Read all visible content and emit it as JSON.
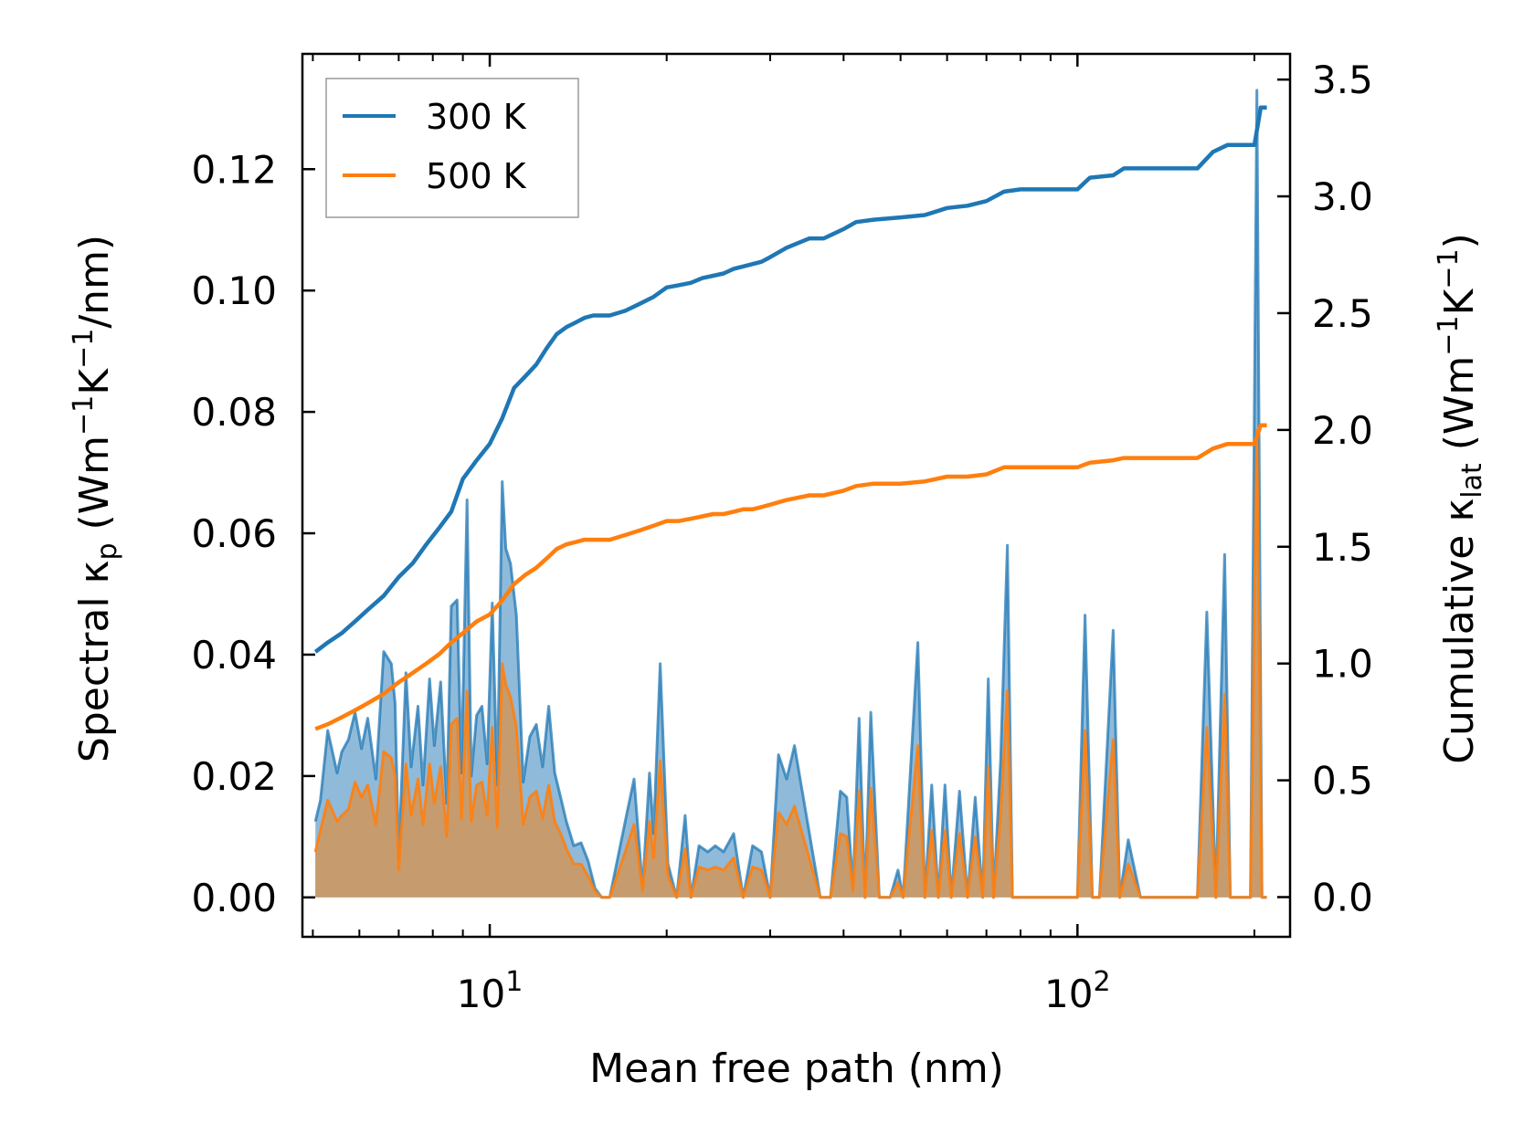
{
  "chart_data": {
    "type": "line+area",
    "xscale": "log",
    "xlabel": "Mean free path (nm)",
    "ylabel_left": {
      "main": "Spectral κ",
      "sub": "p",
      "unit_pre": " (Wm",
      "sup1": "−1",
      "unit_mid": "K",
      "sup2": "−1",
      "unit_post": "/nm)"
    },
    "ylabel_right": {
      "main": "Cumulative κ",
      "sub": "lat",
      "unit_pre": " (Wm",
      "sup1": "−1",
      "unit_mid": "K",
      "sup2": "−1",
      "unit_post": ")"
    },
    "xlim": [
      4.8,
      230
    ],
    "ylim_left": [
      -0.0065,
      0.139
    ],
    "ylim_right": [
      -0.17,
      3.61
    ],
    "x_major_ticks": [
      10,
      100
    ],
    "x_tick_labels": [
      {
        "base": "10",
        "exp": "1"
      },
      {
        "base": "10",
        "exp": "2"
      }
    ],
    "y_left_ticks": [
      0.0,
      0.02,
      0.04,
      0.06,
      0.08,
      0.1,
      0.12
    ],
    "y_left_tick_labels": [
      "0.00",
      "0.02",
      "0.04",
      "0.06",
      "0.08",
      "0.10",
      "0.12"
    ],
    "y_right_ticks": [
      0.0,
      0.5,
      1.0,
      1.5,
      2.0,
      2.5,
      3.0,
      3.5
    ],
    "y_right_tick_labels": [
      "0.0",
      "0.5",
      "1.0",
      "1.5",
      "2.0",
      "2.5",
      "3.0",
      "3.5"
    ],
    "legend": {
      "position": "top-left",
      "entries": [
        "300 K",
        "500 K"
      ]
    },
    "colors": {
      "300K": "#1f77b4",
      "500K": "#ff7f0e",
      "fill300": "#8fbad9",
      "fill500": "#c69c6e"
    },
    "series": [
      {
        "name": "300 K spectral",
        "axis": "left",
        "kind": "area",
        "x": [
          5.05,
          5.15,
          5.3,
          5.5,
          5.6,
          5.75,
          5.9,
          6.05,
          6.2,
          6.4,
          6.6,
          6.8,
          6.9,
          7.0,
          7.2,
          7.35,
          7.55,
          7.7,
          7.9,
          8.05,
          8.25,
          8.45,
          8.6,
          8.8,
          8.95,
          9.15,
          9.3,
          9.5,
          9.7,
          9.9,
          10.1,
          10.3,
          10.5,
          10.65,
          10.85,
          11.1,
          11.4,
          11.7,
          12.0,
          12.3,
          12.6,
          12.9,
          13.2,
          13.5,
          13.9,
          14.3,
          14.7,
          15.1,
          15.5,
          16.0,
          17.0,
          17.6,
          18.2,
          18.7,
          19.0,
          19.5,
          20.1,
          20.8,
          21.5,
          22.0,
          22.7,
          23.5,
          24.2,
          25.0,
          26.0,
          27.0,
          28.0,
          29.0,
          30.0,
          31.0,
          32.0,
          33.0,
          36.5,
          38.0,
          39.5,
          40.5,
          41.5,
          42.5,
          43.5,
          44.5,
          46.0,
          48.0,
          49.5,
          50.5,
          53.5,
          55.0,
          56.5,
          58.0,
          59.5,
          61.0,
          63.0,
          65.0,
          67.0,
          69.0,
          70.5,
          72.0,
          74.0,
          76.0,
          77.5,
          80.0,
          100.0,
          103.0,
          106.0,
          109.0,
          115.0,
          118.0,
          122.0,
          128.0,
          132.0,
          136.0,
          160.0,
          166.0,
          172.0,
          178.0,
          182.0,
          188.0,
          197.0,
          202.0,
          206.0,
          210.0
        ],
        "y": [
          0.0125,
          0.016,
          0.0275,
          0.0205,
          0.024,
          0.026,
          0.0305,
          0.0245,
          0.0295,
          0.0195,
          0.0405,
          0.0385,
          0.032,
          0.0065,
          0.037,
          0.0215,
          0.0315,
          0.0185,
          0.036,
          0.025,
          0.0355,
          0.0155,
          0.048,
          0.049,
          0.0205,
          0.0655,
          0.02,
          0.03,
          0.0315,
          0.022,
          0.0485,
          0.0185,
          0.0685,
          0.0575,
          0.055,
          0.0465,
          0.019,
          0.0265,
          0.0285,
          0.0215,
          0.0315,
          0.0205,
          0.0165,
          0.0125,
          0.0085,
          0.009,
          0.006,
          0.0015,
          0.0,
          0.0,
          0.0125,
          0.0195,
          0.0015,
          0.0205,
          0.0105,
          0.0385,
          0.0055,
          0.0,
          0.0135,
          0.0,
          0.0085,
          0.0075,
          0.0085,
          0.0075,
          0.0105,
          0.0,
          0.0085,
          0.0075,
          0.0,
          0.0235,
          0.0195,
          0.025,
          0.0,
          0.0,
          0.0175,
          0.0165,
          0.0015,
          0.0295,
          0.0,
          0.0305,
          0.0,
          0.0,
          0.0045,
          0.0,
          0.042,
          0.0,
          0.0185,
          0.0,
          0.0185,
          0.0,
          0.0175,
          0.0,
          0.0165,
          0.0,
          0.036,
          0.0,
          0.0225,
          0.058,
          0.0,
          0.0,
          0.0,
          0.0465,
          0.0,
          0.0,
          0.044,
          0.0,
          0.0095,
          0.0,
          0.0,
          0.0,
          0.0,
          0.047,
          0.0,
          0.0565,
          0.0,
          0.0,
          0.0,
          0.133,
          0.0,
          0.0
        ]
      },
      {
        "name": "500 K spectral",
        "axis": "left",
        "kind": "area",
        "x": [
          5.05,
          5.15,
          5.3,
          5.5,
          5.6,
          5.75,
          5.9,
          6.05,
          6.2,
          6.4,
          6.6,
          6.8,
          6.9,
          7.0,
          7.2,
          7.35,
          7.55,
          7.7,
          7.9,
          8.05,
          8.25,
          8.45,
          8.6,
          8.8,
          8.95,
          9.15,
          9.3,
          9.5,
          9.7,
          9.9,
          10.1,
          10.3,
          10.5,
          10.65,
          10.85,
          11.1,
          11.4,
          11.7,
          12.0,
          12.3,
          12.6,
          12.9,
          13.2,
          13.5,
          13.9,
          14.3,
          14.7,
          15.1,
          15.5,
          16.0,
          17.0,
          17.6,
          18.2,
          18.7,
          19.0,
          19.5,
          20.1,
          20.8,
          21.5,
          22.0,
          22.7,
          23.5,
          24.2,
          25.0,
          26.0,
          27.0,
          28.0,
          29.0,
          30.0,
          31.0,
          32.0,
          33.0,
          36.5,
          38.0,
          39.5,
          40.5,
          41.5,
          42.5,
          43.5,
          44.5,
          46.0,
          48.0,
          49.5,
          50.5,
          53.5,
          55.0,
          56.5,
          58.0,
          59.5,
          61.0,
          63.0,
          65.0,
          67.0,
          69.0,
          70.5,
          72.0,
          74.0,
          76.0,
          77.5,
          80.0,
          100.0,
          103.0,
          106.0,
          109.0,
          115.0,
          118.0,
          122.0,
          128.0,
          132.0,
          136.0,
          160.0,
          166.0,
          172.0,
          178.0,
          182.0,
          188.0,
          197.0,
          202.0,
          206.0,
          210.0
        ],
        "y": [
          0.0075,
          0.011,
          0.016,
          0.0125,
          0.0135,
          0.0145,
          0.019,
          0.0165,
          0.0185,
          0.012,
          0.024,
          0.023,
          0.02,
          0.0045,
          0.022,
          0.0135,
          0.0195,
          0.012,
          0.022,
          0.0155,
          0.0215,
          0.01,
          0.0285,
          0.0295,
          0.013,
          0.034,
          0.0125,
          0.0185,
          0.019,
          0.0135,
          0.028,
          0.0115,
          0.0385,
          0.035,
          0.033,
          0.028,
          0.012,
          0.0165,
          0.0175,
          0.013,
          0.0185,
          0.0125,
          0.0105,
          0.008,
          0.0055,
          0.0055,
          0.0035,
          0.001,
          0.0,
          0.0,
          0.0075,
          0.012,
          0.001,
          0.0125,
          0.0065,
          0.0225,
          0.0035,
          0.0,
          0.008,
          0.0,
          0.005,
          0.0045,
          0.005,
          0.0045,
          0.0065,
          0.0,
          0.005,
          0.0045,
          0.0,
          0.014,
          0.012,
          0.015,
          0.0,
          0.0,
          0.0105,
          0.01,
          0.001,
          0.0175,
          0.0,
          0.018,
          0.0,
          0.0,
          0.0025,
          0.0,
          0.025,
          0.0,
          0.011,
          0.0,
          0.011,
          0.0,
          0.0105,
          0.0,
          0.01,
          0.0,
          0.0215,
          0.0,
          0.0135,
          0.034,
          0.0,
          0.0,
          0.0,
          0.0275,
          0.0,
          0.0,
          0.026,
          0.0,
          0.0055,
          0.0,
          0.0,
          0.0,
          0.0,
          0.028,
          0.0,
          0.0335,
          0.0,
          0.0,
          0.0,
          0.077,
          0.0,
          0.0
        ]
      },
      {
        "name": "300 K",
        "axis": "right",
        "kind": "line",
        "x": [
          5.05,
          5.3,
          5.6,
          5.9,
          6.2,
          6.6,
          7.0,
          7.4,
          7.8,
          8.2,
          8.6,
          9.0,
          9.5,
          10.0,
          10.5,
          11.0,
          11.5,
          12.0,
          12.5,
          13.0,
          13.5,
          14.0,
          14.5,
          15.0,
          15.5,
          16.0,
          17.0,
          18.0,
          19.0,
          20.0,
          21.0,
          22.0,
          23.0,
          24.0,
          25.0,
          26.0,
          27.0,
          28.0,
          29.0,
          30.0,
          32.0,
          35.0,
          37.0,
          40.0,
          42.0,
          45.0,
          50.0,
          55.0,
          60.0,
          65.0,
          70.0,
          75.0,
          80.0,
          100.0,
          105.0,
          115.0,
          120.0,
          160.0,
          170.0,
          180.0,
          190.0,
          200.0,
          205.0,
          210.0
        ],
        "y": [
          1.05,
          1.09,
          1.13,
          1.18,
          1.23,
          1.29,
          1.37,
          1.43,
          1.51,
          1.58,
          1.65,
          1.79,
          1.87,
          1.94,
          2.05,
          2.18,
          2.23,
          2.28,
          2.35,
          2.41,
          2.44,
          2.46,
          2.48,
          2.49,
          2.49,
          2.49,
          2.51,
          2.54,
          2.57,
          2.61,
          2.62,
          2.63,
          2.65,
          2.66,
          2.67,
          2.69,
          2.7,
          2.71,
          2.72,
          2.74,
          2.78,
          2.82,
          2.82,
          2.86,
          2.89,
          2.9,
          2.91,
          2.92,
          2.95,
          2.96,
          2.98,
          3.02,
          3.03,
          3.03,
          3.08,
          3.09,
          3.12,
          3.12,
          3.19,
          3.22,
          3.22,
          3.22,
          3.38,
          3.38
        ]
      },
      {
        "name": "500 K",
        "axis": "right",
        "kind": "line",
        "x": [
          5.05,
          5.3,
          5.6,
          5.9,
          6.2,
          6.6,
          7.0,
          7.4,
          7.8,
          8.2,
          8.6,
          9.0,
          9.5,
          10.0,
          10.5,
          11.0,
          11.5,
          12.0,
          12.5,
          13.0,
          13.5,
          14.0,
          14.5,
          15.0,
          15.5,
          16.0,
          17.0,
          18.0,
          19.0,
          20.0,
          21.0,
          22.0,
          23.0,
          24.0,
          25.0,
          26.0,
          27.0,
          28.0,
          29.0,
          30.0,
          32.0,
          35.0,
          37.0,
          40.0,
          42.0,
          45.0,
          50.0,
          55.0,
          60.0,
          65.0,
          70.0,
          75.0,
          80.0,
          100.0,
          105.0,
          115.0,
          120.0,
          160.0,
          170.0,
          180.0,
          190.0,
          200.0,
          205.0,
          210.0
        ],
        "y": [
          0.72,
          0.74,
          0.77,
          0.8,
          0.83,
          0.87,
          0.92,
          0.96,
          1.0,
          1.04,
          1.09,
          1.13,
          1.18,
          1.21,
          1.27,
          1.34,
          1.38,
          1.41,
          1.45,
          1.49,
          1.51,
          1.52,
          1.53,
          1.53,
          1.53,
          1.53,
          1.55,
          1.57,
          1.59,
          1.61,
          1.61,
          1.62,
          1.63,
          1.64,
          1.64,
          1.65,
          1.66,
          1.66,
          1.67,
          1.68,
          1.7,
          1.72,
          1.72,
          1.74,
          1.76,
          1.77,
          1.77,
          1.78,
          1.8,
          1.8,
          1.81,
          1.84,
          1.84,
          1.84,
          1.86,
          1.87,
          1.88,
          1.88,
          1.92,
          1.94,
          1.94,
          1.94,
          2.02,
          2.02
        ]
      }
    ]
  }
}
